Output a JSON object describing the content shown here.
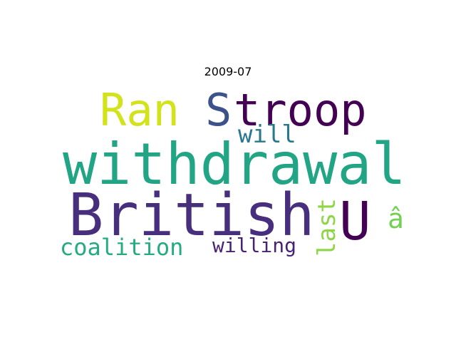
{
  "title": "2009-07",
  "words": [
    {
      "text": "Ran",
      "color": "#d2e21b"
    },
    {
      "text": "S",
      "color": "#3b528b"
    },
    {
      "text": "troop",
      "color": "#440154"
    },
    {
      "text": "will",
      "color": "#2a788e"
    },
    {
      "text": "withdrawal",
      "color": "#21a585"
    },
    {
      "text": "British",
      "color": "#472f7d"
    },
    {
      "text": "U",
      "color": "#440154"
    },
    {
      "text": "last",
      "color": "#8ed645"
    },
    {
      "text": "â",
      "color": "#73d055"
    },
    {
      "text": "coalition",
      "color": "#25ab82"
    },
    {
      "text": "willing",
      "color": "#482374"
    }
  ]
}
